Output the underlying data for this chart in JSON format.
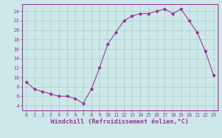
{
  "hours": [
    0,
    1,
    2,
    3,
    4,
    5,
    6,
    7,
    8,
    9,
    10,
    11,
    12,
    13,
    14,
    15,
    16,
    17,
    18,
    19,
    20,
    21,
    22,
    23
  ],
  "values": [
    9.0,
    7.5,
    7.0,
    6.5,
    6.0,
    6.0,
    5.5,
    4.5,
    7.5,
    12.0,
    17.0,
    19.5,
    22.0,
    23.0,
    23.5,
    23.5,
    24.0,
    24.5,
    23.5,
    24.5,
    22.0,
    19.5,
    15.5,
    10.5
  ],
  "line_color": "#993399",
  "marker": "*",
  "marker_size": 3,
  "bg_color": "#cce8e8",
  "grid_color": "#aacccc",
  "xlabel": "Windchill (Refroidissement éolien,°C)",
  "xlabel_color": "#993399",
  "tick_color": "#993399",
  "spine_color": "#993399",
  "xlim": [
    -0.5,
    23.5
  ],
  "ylim": [
    3.0,
    25.5
  ],
  "yticks": [
    4,
    6,
    8,
    10,
    12,
    14,
    16,
    18,
    20,
    22,
    24
  ],
  "xticks": [
    0,
    1,
    2,
    3,
    4,
    5,
    6,
    7,
    8,
    9,
    10,
    11,
    12,
    13,
    14,
    15,
    16,
    17,
    18,
    19,
    20,
    21,
    22,
    23
  ],
  "tick_fontsize": 5.0,
  "xlabel_fontsize": 6.5
}
